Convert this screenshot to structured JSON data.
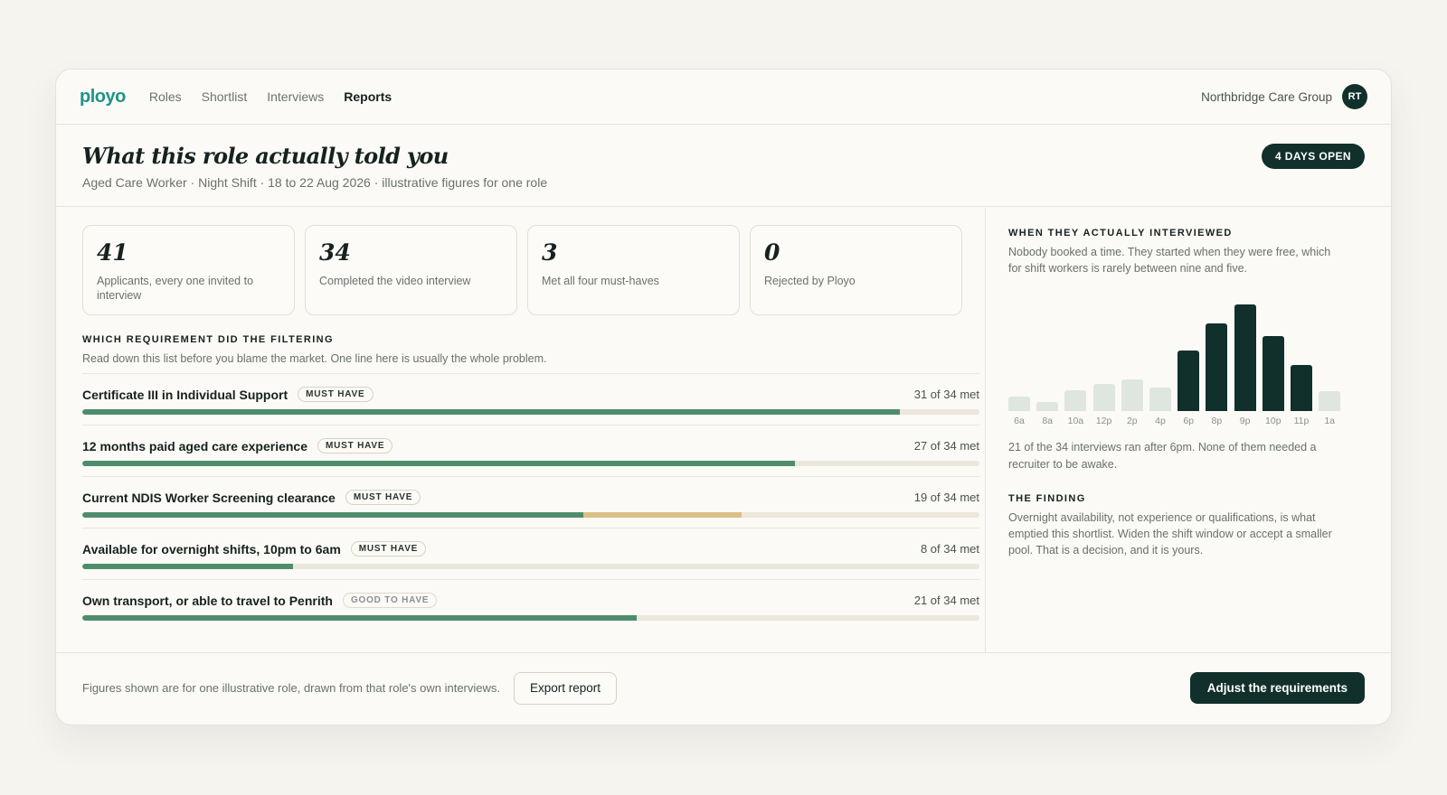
{
  "nav": {
    "logo": "ployo",
    "links": [
      "Roles",
      "Shortlist",
      "Interviews",
      "Reports"
    ],
    "active": "Reports",
    "org": "Northbridge Care Group",
    "avatar": "RT"
  },
  "header": {
    "title": "What this role actually told you",
    "subtitle": "Aged Care Worker · Night Shift · 18 to 22 Aug 2026 · illustrative figures for one role",
    "badge": "4 DAYS OPEN"
  },
  "stats": [
    {
      "value": "41",
      "label": "Applicants, every one invited to interview"
    },
    {
      "value": "34",
      "label": "Completed the video interview"
    },
    {
      "value": "3",
      "label": "Met all four must-haves"
    },
    {
      "value": "0",
      "label": "Rejected by Ployo"
    }
  ],
  "requirements_section": {
    "title": "WHICH REQUIREMENT DID THE FILTERING",
    "description": "Read down this list before you blame the market. One line here is usually the whole problem."
  },
  "requirements": [
    {
      "name": "Certificate III in Individual Support",
      "tag": "MUST HAVE",
      "count": "31 of 34 met",
      "met": 31,
      "total": 34,
      "amber_end": null
    },
    {
      "name": "12 months paid aged care experience",
      "tag": "MUST HAVE",
      "count": "27 of 34 met",
      "met": 27,
      "total": 34,
      "amber_end": null
    },
    {
      "name": "Current NDIS Worker Screening clearance",
      "tag": "MUST HAVE",
      "count": "19 of 34 met",
      "met": 19,
      "total": 34,
      "amber_end": 25
    },
    {
      "name": "Available for overnight shifts, 10pm to 6am",
      "tag": "MUST HAVE",
      "count": "8 of 34 met",
      "met": 8,
      "total": 34,
      "amber_end": null
    },
    {
      "name": "Own transport, or able to travel to Penrith",
      "tag": "GOOD TO HAVE",
      "count": "21 of 34 met",
      "met": 21,
      "total": 34,
      "amber_end": null
    }
  ],
  "interview_times": {
    "title": "WHEN THEY ACTUALLY INTERVIEWED",
    "description": "Nobody booked a time. They started when they were free, which for shift workers is rarely between nine and five.",
    "note": "21 of the 34 interviews ran after 6pm. None of them needed a recruiter to be awake."
  },
  "chart_data": {
    "type": "bar",
    "categories": [
      "6a",
      "8a",
      "10a",
      "12p",
      "2p",
      "4p",
      "6p",
      "8p",
      "9p",
      "10p",
      "11p",
      "1a"
    ],
    "values": [
      1.4,
      0.9,
      2.0,
      2.6,
      3.1,
      2.3,
      5.9,
      8.5,
      10.3,
      7.3,
      4.5,
      1.9
    ],
    "highlighted": [
      false,
      false,
      false,
      false,
      false,
      false,
      true,
      true,
      true,
      true,
      true,
      false
    ],
    "ylim": [
      0,
      10.5
    ],
    "grid": false,
    "colors": {
      "highlighted": "#12302b",
      "base": "#dfe6e0"
    }
  },
  "finding": {
    "title": "THE FINDING",
    "text": "Overnight availability, not experience or qualifications, is what emptied this shortlist. Widen the shift window or accept a smaller pool. That is a decision, and it is yours."
  },
  "footer": {
    "note": "Figures shown are for one illustrative role, drawn from that role's own interviews.",
    "export_label": "Export report",
    "adjust_label": "Adjust the requirements"
  },
  "colors": {
    "accent": "#1f9486",
    "dark": "#12302b",
    "bar_fill": "#4e8d6c",
    "bar_amber": "#dcbf85",
    "bar_track": "#ece7dc",
    "background": "#f6f4ef"
  }
}
